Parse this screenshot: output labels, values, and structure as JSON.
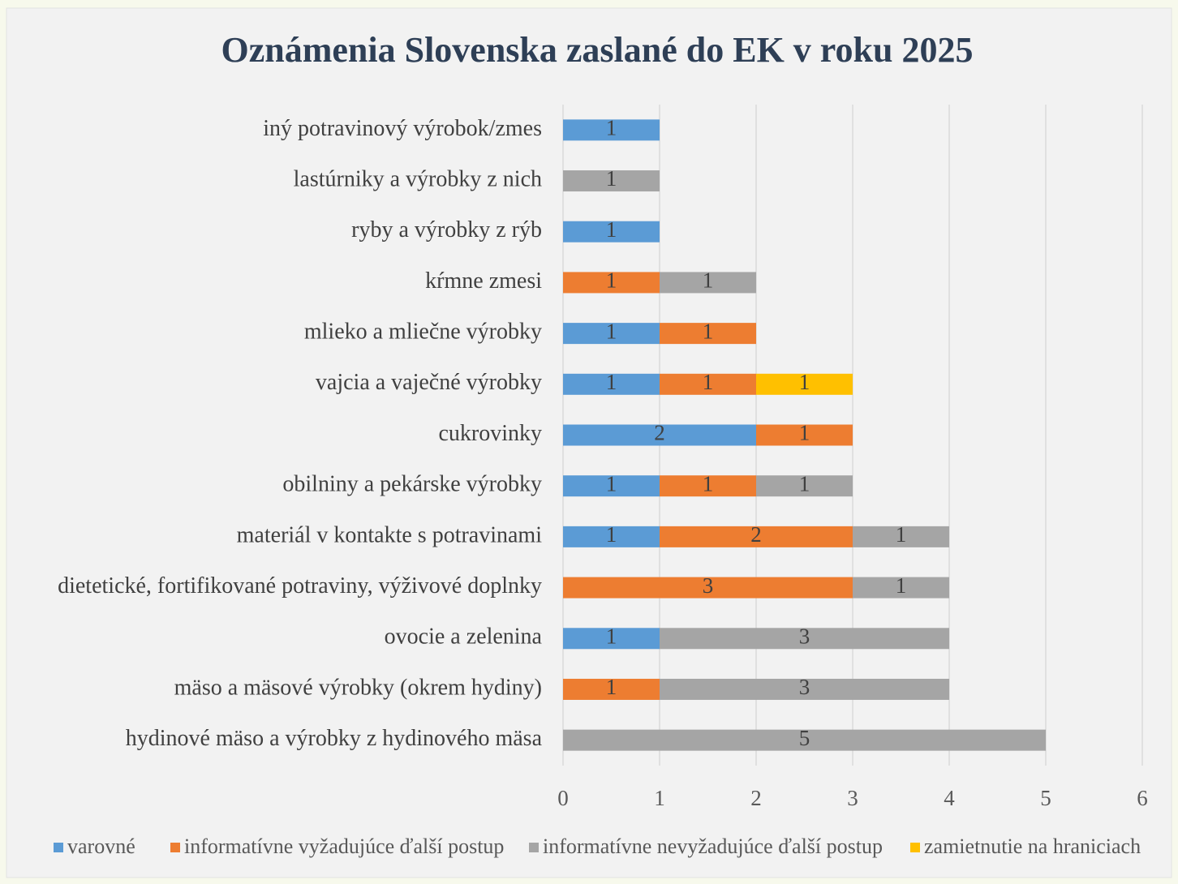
{
  "chart_data": {
    "type": "bar",
    "orientation": "horizontal",
    "stacked": true,
    "title": "Oznámenia Slovenska zaslané do EK v roku 2025",
    "categories": [
      "iný potravinový výrobok/zmes",
      "lastúrniky a výrobky z nich",
      "ryby a výrobky z rýb",
      "kŕmne zmesi",
      "mlieko a mliečne výrobky",
      "vajcia a vaječné výrobky",
      "cukrovinky",
      "obilniny a pekárske výrobky",
      "materiál v kontakte s potravinami",
      "dietetické, fortifikované potraviny, výživové doplnky",
      "ovocie a zelenina",
      "mäso a mäsové výrobky (okrem hydiny)",
      "hydinové mäso a výrobky z hydinového mäsa"
    ],
    "series": [
      {
        "name": "varovné",
        "color": "#5b9bd5",
        "values": [
          1,
          null,
          1,
          null,
          1,
          1,
          2,
          1,
          1,
          null,
          1,
          null,
          null
        ]
      },
      {
        "name": "informatívne vyžadujúce ďalší postup",
        "color": "#ed7d31",
        "values": [
          null,
          null,
          null,
          1,
          1,
          1,
          1,
          1,
          2,
          3,
          null,
          1,
          null
        ]
      },
      {
        "name": "informatívne nevyžadujúce ďalší postup",
        "color": "#a5a5a5",
        "values": [
          null,
          1,
          null,
          1,
          null,
          null,
          null,
          1,
          1,
          1,
          3,
          3,
          5
        ]
      },
      {
        "name": "zamietnutie na hraniciach",
        "color": "#ffc000",
        "values": [
          null,
          null,
          null,
          null,
          null,
          1,
          null,
          null,
          null,
          null,
          null,
          null,
          null
        ]
      }
    ],
    "xlim": [
      0,
      6
    ],
    "xticks": [
      0,
      1,
      2,
      3,
      4,
      5,
      6
    ],
    "grid": true,
    "legend": "bottom"
  }
}
